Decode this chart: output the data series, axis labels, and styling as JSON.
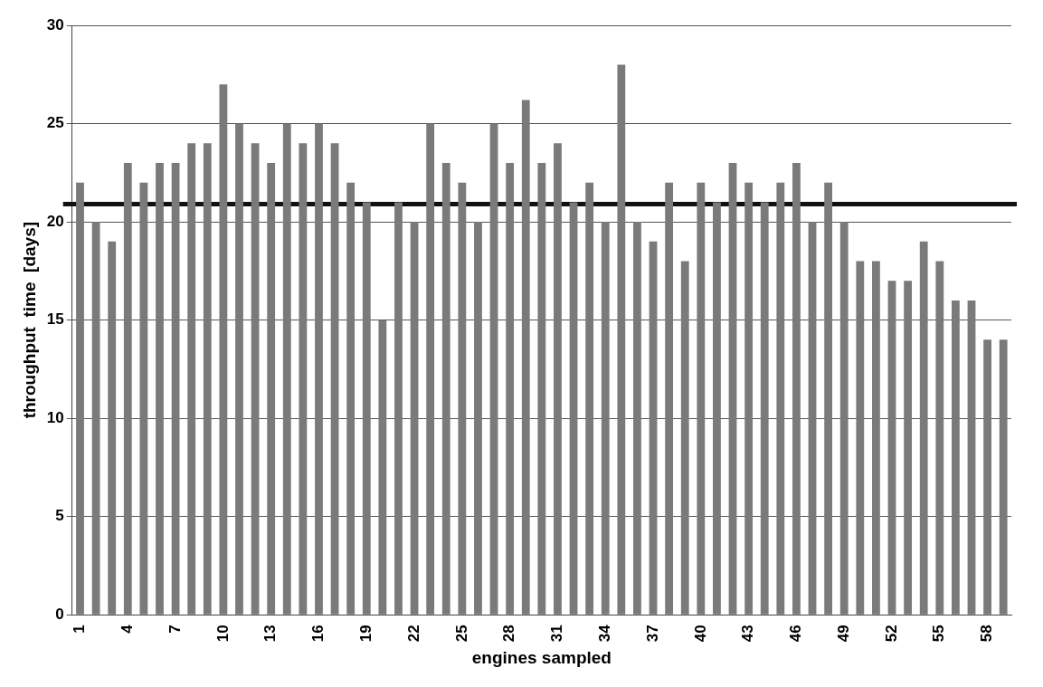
{
  "chart_data": {
    "type": "bar",
    "xlabel": "engines sampled",
    "ylabel": "throughput  time  [days]",
    "categories": [
      "1",
      null,
      null,
      "4",
      null,
      null,
      "7",
      null,
      null,
      "10",
      null,
      null,
      "13",
      null,
      null,
      "16",
      null,
      null,
      "19",
      null,
      null,
      "22",
      null,
      null,
      "25",
      null,
      null,
      "28",
      null,
      null,
      "31",
      null,
      null,
      "34",
      null,
      null,
      "37",
      null,
      null,
      "40",
      null,
      null,
      "43",
      null,
      null,
      "46",
      null,
      null,
      "49",
      null,
      null,
      "52",
      null,
      null,
      "55",
      null,
      null,
      "58",
      null
    ],
    "values": [
      22,
      20,
      19,
      23,
      22,
      23,
      23,
      24,
      24,
      27,
      25,
      24,
      23,
      25,
      24,
      25,
      24,
      22,
      21,
      15,
      21,
      20,
      25,
      23,
      22,
      20,
      25,
      23,
      26.2,
      23,
      24,
      21,
      22,
      20,
      28,
      20,
      19,
      22,
      18,
      22,
      21,
      23,
      22,
      21,
      22,
      23,
      20,
      22,
      20,
      18,
      18,
      17,
      17,
      19,
      18,
      16,
      16,
      14,
      14
    ],
    "color": "#7a7a7a",
    "ylim": [
      0,
      30
    ],
    "yticks": [
      0,
      5,
      10,
      15,
      20,
      25,
      30
    ],
    "grid": "y",
    "legend": false,
    "ref_lines": [
      {
        "axis": "y",
        "value": 20.9,
        "color": "#111111",
        "line_style": "solid"
      }
    ]
  }
}
